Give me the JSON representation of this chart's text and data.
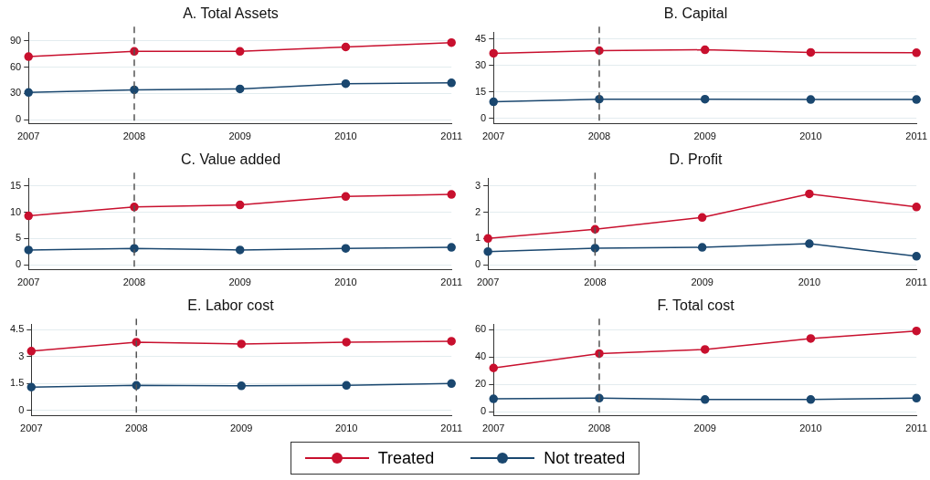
{
  "chart_data": [
    {
      "type": "line",
      "title": "A. Total Assets",
      "x": [
        2007,
        2008,
        2009,
        2010,
        2011
      ],
      "xlim": [
        2007,
        2011
      ],
      "xticks": [
        2007,
        2008,
        2009,
        2010,
        2011
      ],
      "ylim": [
        -5,
        100
      ],
      "yticks": [
        0,
        30,
        60,
        90
      ],
      "grid": "y",
      "marker": "circle",
      "legend": "bottom",
      "ref_lines": [
        {
          "axis": "x",
          "value": 2008,
          "color": "#555555",
          "line_style": "dashed"
        }
      ],
      "series": [
        {
          "name": "Treated",
          "color": "#c8102e",
          "values": [
            72,
            78,
            78,
            83,
            88
          ]
        },
        {
          "name": "Not treated",
          "color": "#1a476f",
          "values": [
            31,
            34,
            35,
            41,
            42
          ]
        }
      ]
    },
    {
      "type": "line",
      "title": "B. Capital",
      "x": [
        2007,
        2008,
        2009,
        2010,
        2011
      ],
      "xlim": [
        2007,
        2011
      ],
      "xticks": [
        2007,
        2008,
        2009,
        2010,
        2011
      ],
      "ylim": [
        -3,
        49
      ],
      "yticks": [
        0,
        15,
        30,
        45
      ],
      "grid": "y",
      "marker": "circle",
      "legend": "bottom",
      "ref_lines": [
        {
          "axis": "x",
          "value": 2008,
          "color": "#555555",
          "line_style": "dashed"
        }
      ],
      "series": [
        {
          "name": "Treated",
          "color": "#c8102e",
          "values": [
            37,
            38.5,
            39,
            37.5,
            37.3
          ]
        },
        {
          "name": "Not treated",
          "color": "#1a476f",
          "values": [
            9.5,
            11,
            11,
            10.8,
            10.8
          ]
        }
      ]
    },
    {
      "type": "line",
      "title": "C. Value added",
      "x": [
        2007,
        2008,
        2009,
        2010,
        2011
      ],
      "xlim": [
        2007,
        2011
      ],
      "xticks": [
        2007,
        2008,
        2009,
        2010,
        2011
      ],
      "ylim": [
        -1,
        16.5
      ],
      "yticks": [
        0,
        5,
        10,
        15
      ],
      "grid": "y",
      "marker": "circle",
      "legend": "bottom",
      "ref_lines": [
        {
          "axis": "x",
          "value": 2008,
          "color": "#555555",
          "line_style": "dashed"
        }
      ],
      "series": [
        {
          "name": "Treated",
          "color": "#c8102e",
          "values": [
            9.3,
            11,
            11.4,
            13,
            13.4
          ]
        },
        {
          "name": "Not treated",
          "color": "#1a476f",
          "values": [
            2.8,
            3.1,
            2.8,
            3.1,
            3.3
          ]
        }
      ]
    },
    {
      "type": "line",
      "title": "D. Profit",
      "x": [
        2007,
        2008,
        2009,
        2010,
        2011
      ],
      "xlim": [
        2007,
        2011
      ],
      "xticks": [
        2007,
        2008,
        2009,
        2010,
        2011
      ],
      "ylim": [
        -0.2,
        3.3
      ],
      "yticks": [
        0,
        1,
        2,
        3
      ],
      "grid": "y",
      "marker": "circle",
      "legend": "bottom",
      "ref_lines": [
        {
          "axis": "x",
          "value": 2008,
          "color": "#555555",
          "line_style": "dashed"
        }
      ],
      "series": [
        {
          "name": "Treated",
          "color": "#c8102e",
          "values": [
            1.0,
            1.35,
            1.8,
            2.7,
            2.2
          ]
        },
        {
          "name": "Not treated",
          "color": "#1a476f",
          "values": [
            0.5,
            0.63,
            0.66,
            0.8,
            0.32
          ]
        }
      ]
    },
    {
      "type": "line",
      "title": "E. Labor cost",
      "x": [
        2007,
        2008,
        2009,
        2010,
        2011
      ],
      "xlim": [
        2007,
        2011
      ],
      "xticks": [
        2007,
        2008,
        2009,
        2010,
        2011
      ],
      "ylim": [
        -0.3,
        4.8
      ],
      "yticks": [
        0,
        1.5,
        3,
        4.5
      ],
      "grid": "y",
      "marker": "circle",
      "legend": "bottom",
      "ref_lines": [
        {
          "axis": "x",
          "value": 2008,
          "color": "#555555",
          "line_style": "dashed"
        }
      ],
      "series": [
        {
          "name": "Treated",
          "color": "#c8102e",
          "values": [
            3.3,
            3.8,
            3.7,
            3.8,
            3.85
          ]
        },
        {
          "name": "Not treated",
          "color": "#1a476f",
          "values": [
            1.3,
            1.4,
            1.37,
            1.4,
            1.5
          ]
        }
      ]
    },
    {
      "type": "line",
      "title": "F. Total cost",
      "x": [
        2007,
        2008,
        2009,
        2010,
        2011
      ],
      "xlim": [
        2007,
        2011
      ],
      "xticks": [
        2007,
        2008,
        2009,
        2010,
        2011
      ],
      "ylim": [
        -3,
        64
      ],
      "yticks": [
        0,
        20,
        40,
        60
      ],
      "grid": "y",
      "marker": "circle",
      "legend": "bottom",
      "ref_lines": [
        {
          "axis": "x",
          "value": 2008,
          "color": "#555555",
          "line_style": "dashed"
        }
      ],
      "series": [
        {
          "name": "Treated",
          "color": "#c8102e",
          "values": [
            32,
            42.5,
            45.5,
            53.5,
            59
          ]
        },
        {
          "name": "Not treated",
          "color": "#1a476f",
          "values": [
            9.5,
            10,
            9,
            9,
            10
          ]
        }
      ]
    }
  ]
}
